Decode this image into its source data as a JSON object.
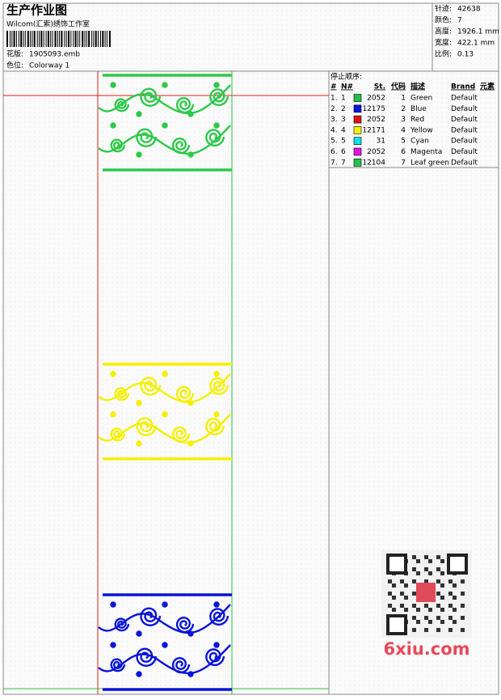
{
  "header": {
    "title": "生产作业图",
    "studio": "Wilcom(汇索)绣饰工作室",
    "design_label": "花版:",
    "design": "1905093.emb",
    "colorway_label": "色位:",
    "colorway": "Colorway 1"
  },
  "info": [
    {
      "label": "针迹:",
      "value": "42638"
    },
    {
      "label": "颜色:",
      "value": "7"
    },
    {
      "label": "高度:",
      "value": "1926.1 mm"
    },
    {
      "label": "宽度:",
      "value": "422.1 mm"
    },
    {
      "label": "比例:",
      "value": "0.13"
    }
  ],
  "table": {
    "title": "停止顺序:",
    "headers": [
      "#",
      "N#",
      "St.",
      "代码",
      "描述",
      "Brand",
      "元素"
    ],
    "rows": [
      {
        "seq": "1.",
        "n": "1",
        "color": "#22c04a",
        "st": 2052,
        "code": "1",
        "desc": "Green",
        "brand": "Default"
      },
      {
        "seq": "2.",
        "n": "2",
        "color": "#0a14e0",
        "st": 12175,
        "code": "2",
        "desc": "Blue",
        "brand": "Default"
      },
      {
        "seq": "3.",
        "n": "3",
        "color": "#e01010",
        "st": 2052,
        "code": "3",
        "desc": "Red",
        "brand": "Default"
      },
      {
        "seq": "4.",
        "n": "4",
        "color": "#f4f000",
        "st": 12171,
        "code": "4",
        "desc": "Yellow",
        "brand": "Default"
      },
      {
        "seq": "5.",
        "n": "5",
        "color": "#10e0e8",
        "st": 31,
        "code": "5",
        "desc": "Cyan",
        "brand": "Default"
      },
      {
        "seq": "6.",
        "n": "6",
        "color": "#e010e0",
        "st": 2052,
        "code": "6",
        "desc": "Magenta",
        "brand": "Default"
      },
      {
        "seq": "7.",
        "n": "7",
        "color": "#22c04a",
        "st": 12104,
        "code": "7",
        "desc": "Leaf green",
        "brand": "Default"
      }
    ]
  },
  "watermark": "6xiu.com"
}
